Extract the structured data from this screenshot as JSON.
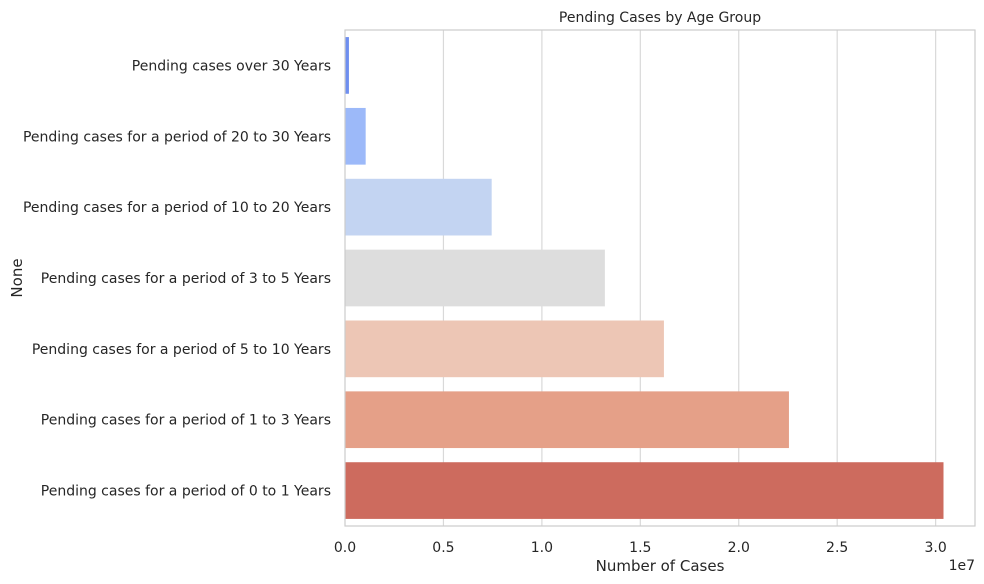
{
  "chart_data": {
    "type": "bar",
    "orientation": "horizontal",
    "title": "Pending Cases by Age Group",
    "xlabel": "Number of Cases",
    "ylabel": "None",
    "x_offset_label": "1e7",
    "xlim": [
      0,
      3.2
    ],
    "x_scale_factor": 10000000,
    "x_ticks": [
      "0.0",
      "0.5",
      "1.0",
      "1.5",
      "2.0",
      "2.5",
      "3.0"
    ],
    "grid": "vertical",
    "categories": [
      "Pending cases over 30 Years",
      "Pending cases for a period of 20 to 30 Years",
      "Pending cases for a period of 10 to 20 Years",
      "Pending cases for a period of 3 to 5 Years",
      "Pending cases for a period of 5 to 10 Years",
      "Pending cases for a period of 1 to 3 Years",
      "Pending cases for a period of 0 to 1 Years"
    ],
    "values": [
      0.02,
      0.105,
      0.745,
      1.32,
      1.62,
      2.255,
      3.04
    ],
    "colors": [
      "#6f8ff0",
      "#9cb9f9",
      "#c3d4f2",
      "#dddddd",
      "#edc6b5",
      "#e5a088",
      "#cd6b5e"
    ]
  }
}
